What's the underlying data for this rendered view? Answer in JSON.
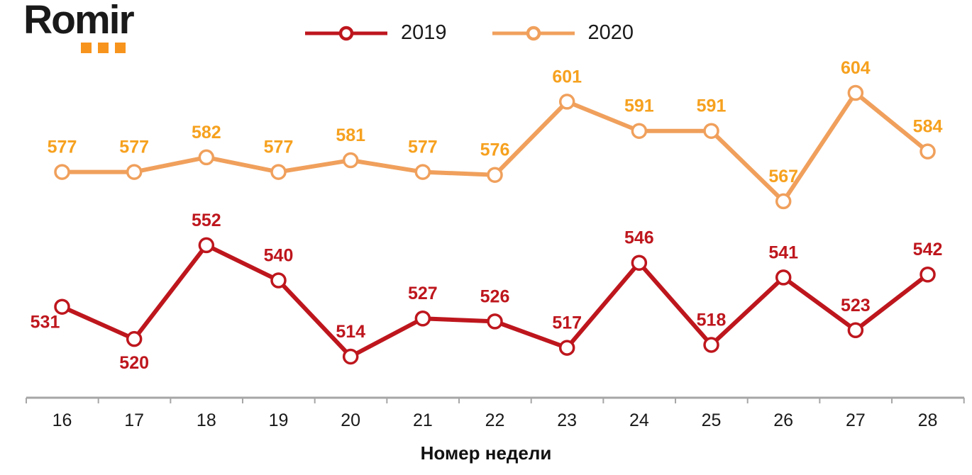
{
  "logo": {
    "text": "Romir",
    "accent_color": "#F7941D"
  },
  "chart_data": {
    "type": "line",
    "categories": [
      16,
      17,
      18,
      19,
      20,
      21,
      22,
      23,
      24,
      25,
      26,
      27,
      28
    ],
    "series": [
      {
        "name": "2019",
        "color": "#BE161D",
        "label_color": "#BE161D",
        "values": [
          531,
          520,
          552,
          540,
          514,
          527,
          526,
          517,
          546,
          518,
          541,
          523,
          542
        ],
        "label_placements": [
          "left-below",
          "below",
          "above",
          "above",
          "above",
          "above",
          "above",
          "above",
          "above",
          "above",
          "above",
          "above",
          "above"
        ]
      },
      {
        "name": "2020",
        "color": "#F0A05C",
        "label_color": "#F6A11F",
        "values": [
          577,
          577,
          582,
          577,
          581,
          577,
          576,
          601,
          591,
          591,
          567,
          604,
          584
        ],
        "label_placements": [
          "above",
          "above",
          "above",
          "above",
          "above",
          "above",
          "above",
          "above",
          "above",
          "above",
          "above",
          "above",
          "above"
        ]
      }
    ],
    "xlabel": "Номер недели",
    "legend_position": "top",
    "grid": false,
    "axis_color": "#A6A6A6",
    "tick_label_color": "#1a1a1a",
    "marker_style": "open-circle"
  }
}
